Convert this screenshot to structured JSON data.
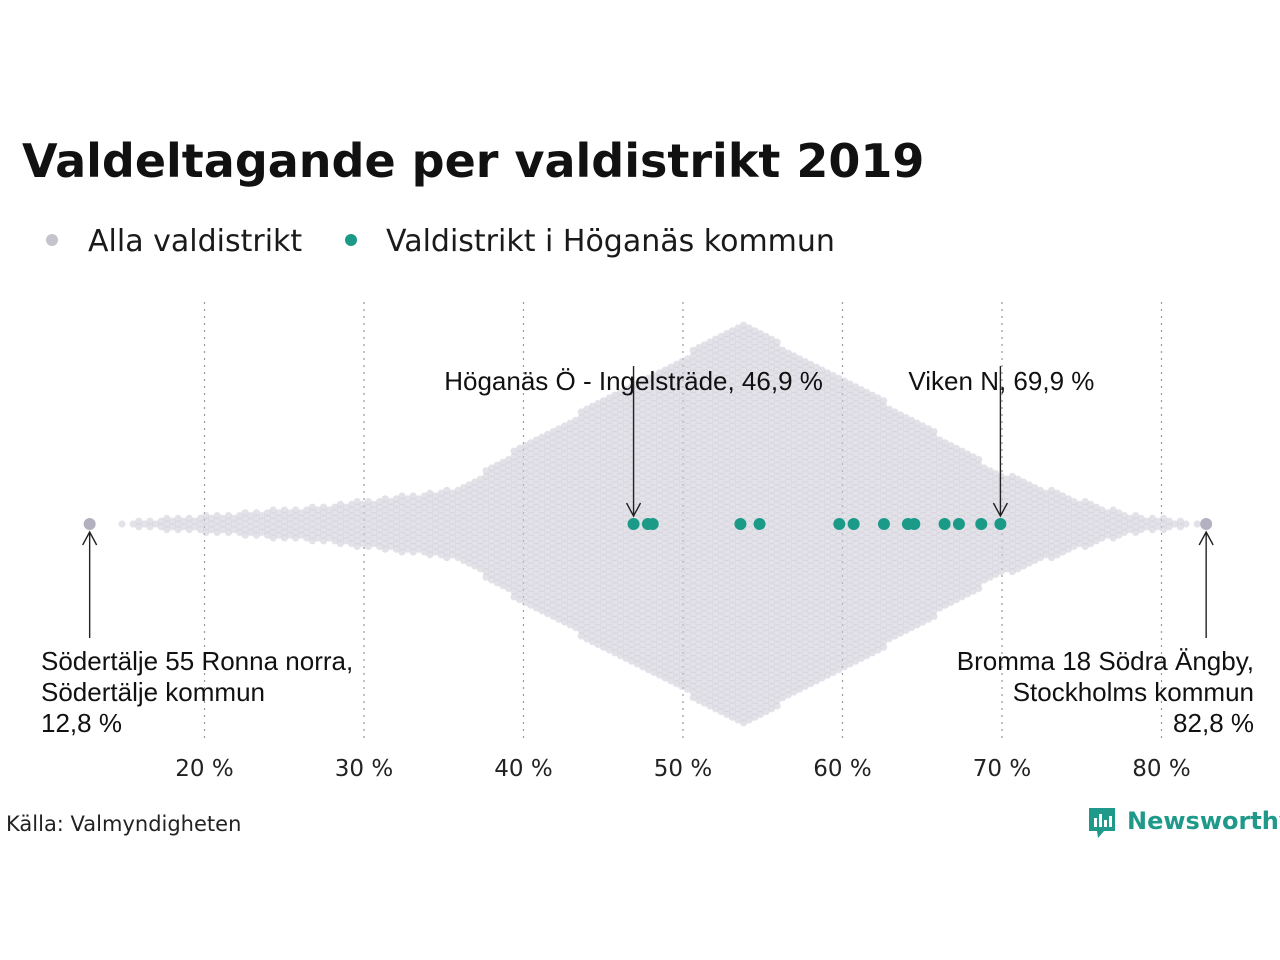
{
  "chart_data": {
    "type": "scatter",
    "title": "Valdeltagande per valdistrikt 2019",
    "xlabel": "",
    "ylabel": "",
    "xlim": [
      12,
      84
    ],
    "x_ticks": [
      {
        "value": 20,
        "label": "20 %"
      },
      {
        "value": 30,
        "label": "30 %"
      },
      {
        "value": 40,
        "label": "40 %"
      },
      {
        "value": 50,
        "label": "50 %"
      },
      {
        "value": 60,
        "label": "60 %"
      },
      {
        "value": 70,
        "label": "70 %"
      },
      {
        "value": 80,
        "label": "80 %"
      }
    ],
    "grid": "vertical-dotted",
    "legend": [
      {
        "label": "Alla valdistrikt",
        "color": "#c4c3ce"
      },
      {
        "label": "Valdistrikt i Höganäs kommun",
        "color": "#1a9a87"
      }
    ],
    "legend_position": "top-left",
    "series": [
      {
        "name": "Valdistrikt i Höganäs kommun",
        "color": "#1a9a87",
        "x": [
          46.9,
          47.8,
          48.1,
          53.6,
          54.8,
          59.8,
          60.7,
          62.6,
          64.1,
          64.5,
          66.4,
          67.3,
          68.7,
          69.9
        ]
      }
    ],
    "highlights": [
      {
        "x": 12.8,
        "color": "#b3b1c0"
      },
      {
        "x": 82.8,
        "color": "#b3b1c0"
      }
    ],
    "annotations": [
      {
        "x": 46.9,
        "lines": [
          "Höganäs Ö - Ingelsträde, 46,9 %"
        ],
        "placement": "above"
      },
      {
        "x": 69.9,
        "lines": [
          "Viken N, 69,9 %"
        ],
        "placement": "above"
      },
      {
        "x": 12.8,
        "lines": [
          "Södertälje 55 Ronna norra,",
          "Södertälje kommun",
          "12,8 %"
        ],
        "placement": "below-left"
      },
      {
        "x": 82.8,
        "lines": [
          "Bromma 18 Södra Ängby,",
          "Stockholms kommun",
          "82,8 %"
        ],
        "placement": "below-right"
      }
    ]
  },
  "source": "Källa: Valmyndigheten",
  "brand": "Newsworthy"
}
